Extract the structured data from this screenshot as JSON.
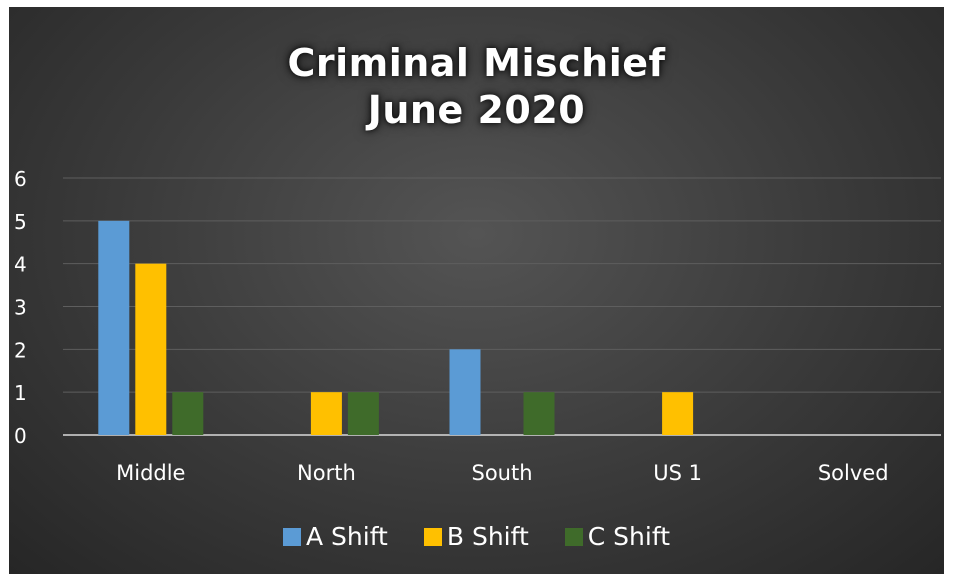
{
  "chart_data": {
    "type": "bar",
    "title": "Criminal Mischief",
    "subtitle": "June 2020",
    "xlabel": "",
    "ylabel": "",
    "ylim": [
      0,
      6
    ],
    "yticks": [
      "0",
      "1",
      "2",
      "3",
      "4",
      "5",
      "6"
    ],
    "grid": true,
    "legend_position": "bottom",
    "categories": [
      "Middle",
      "North",
      "South",
      "US 1",
      "Solved"
    ],
    "series": [
      {
        "name": "A Shift",
        "color": "#5b9bd5",
        "values": [
          5,
          0,
          2,
          0,
          0
        ]
      },
      {
        "name": "B Shift",
        "color": "#ffc000",
        "values": [
          4,
          1,
          0,
          1,
          0
        ]
      },
      {
        "name": "C Shift",
        "color": "#3f6b2a",
        "values": [
          1,
          1,
          1,
          0,
          0
        ]
      }
    ]
  }
}
